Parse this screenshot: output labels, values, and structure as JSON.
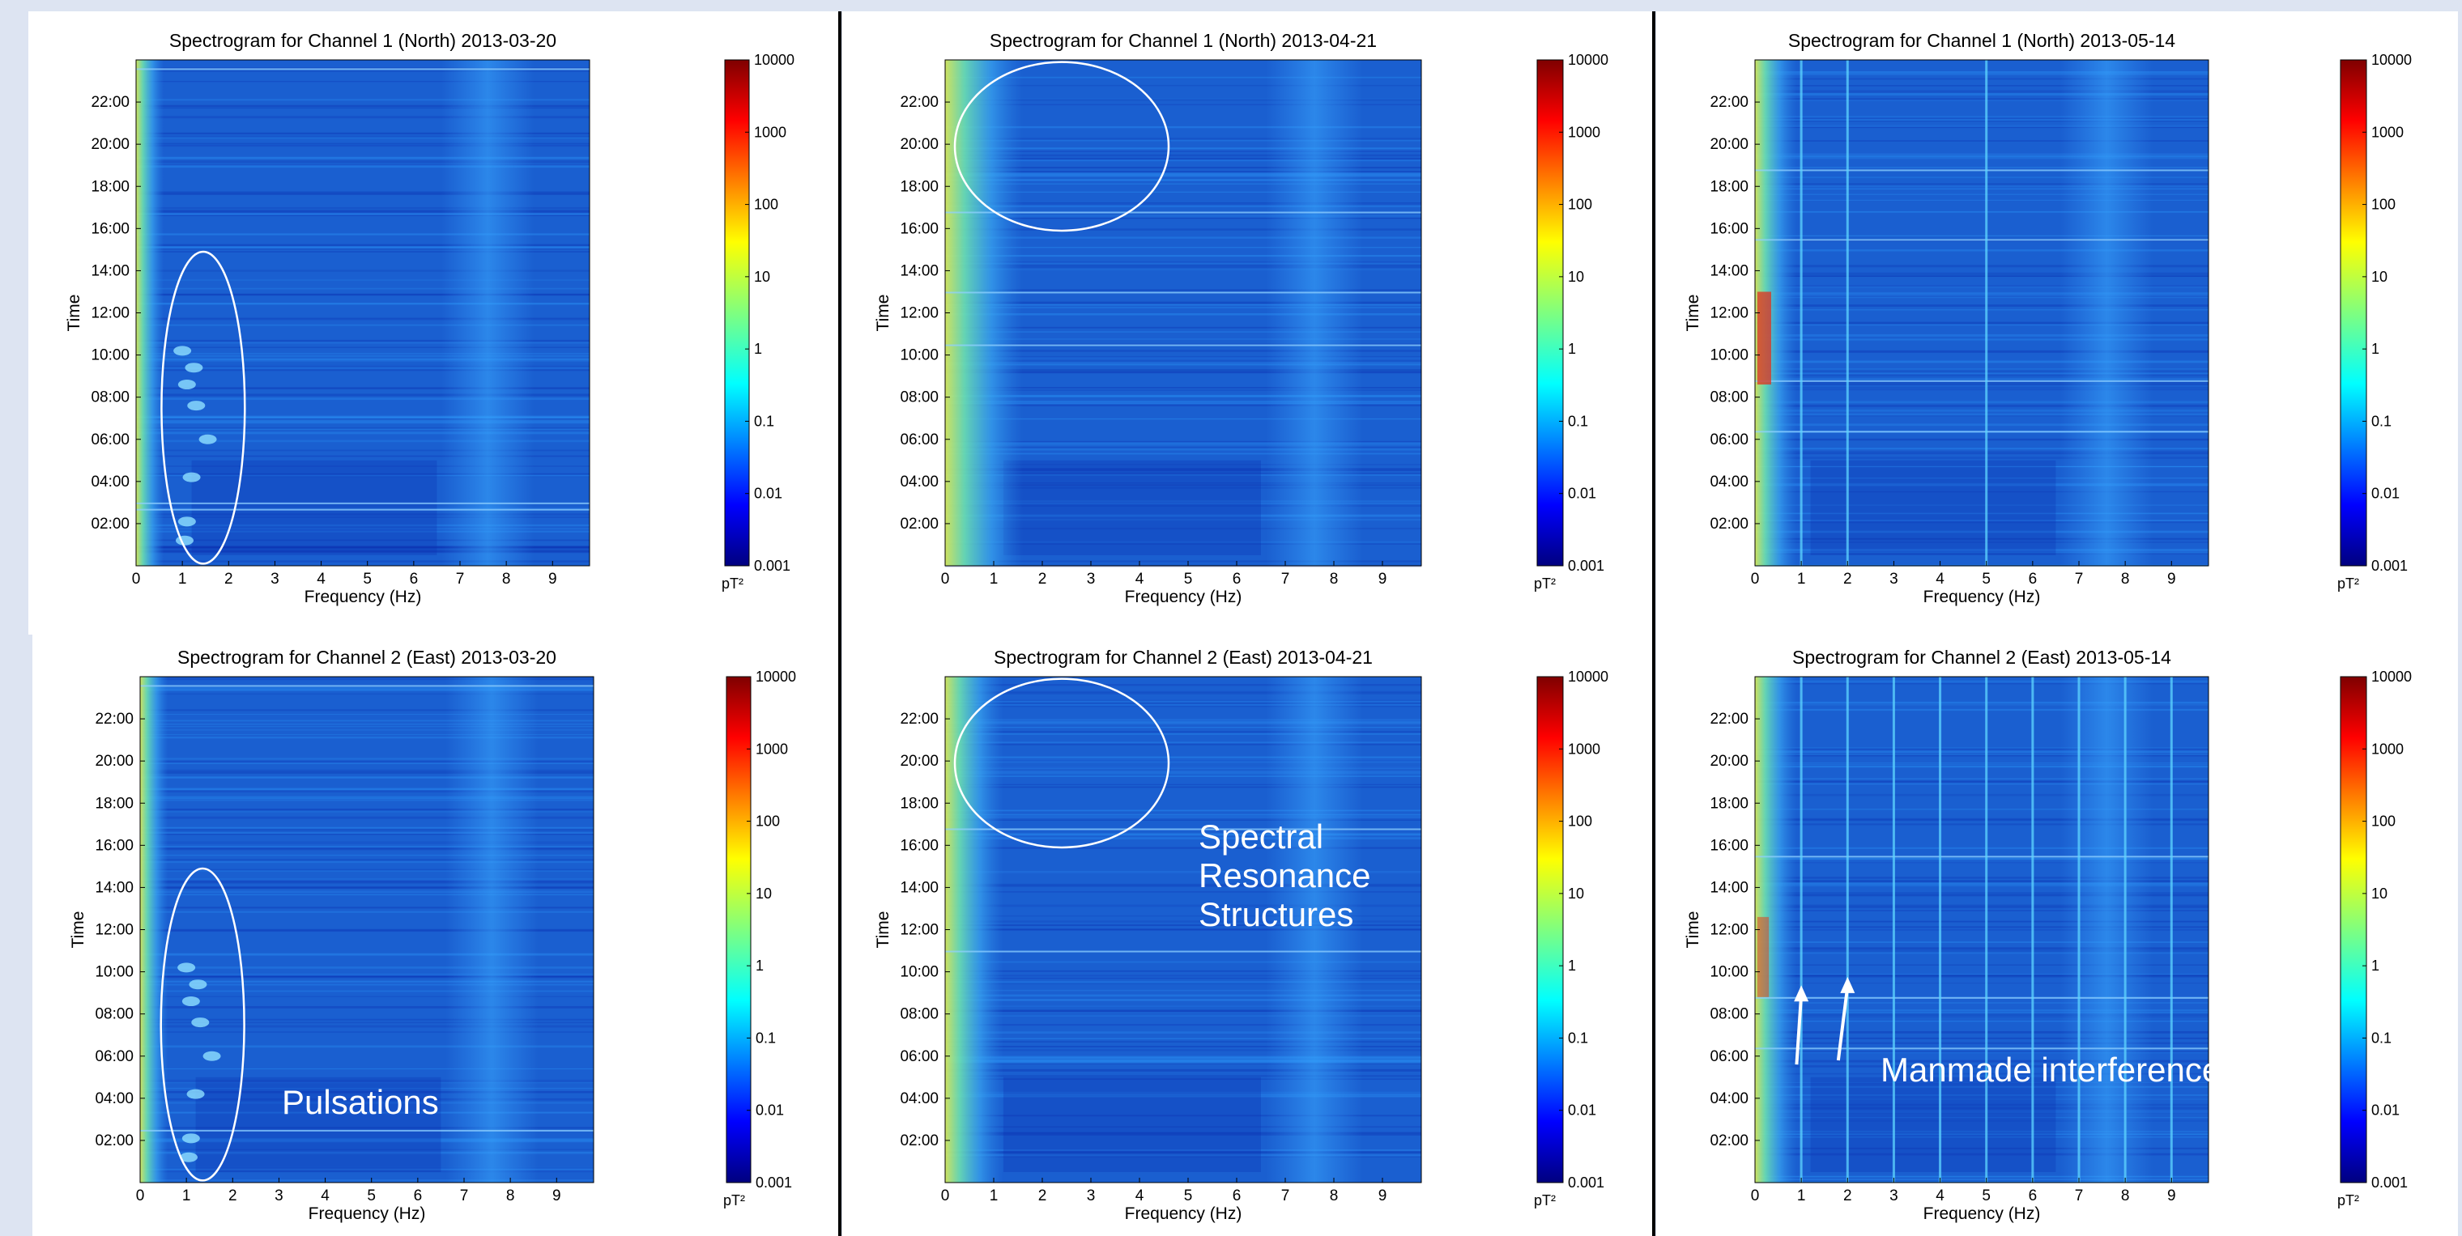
{
  "chart_data": [
    {
      "type": "heatmap",
      "title": "Spectrogram for Channel 1 (North) 2013-03-20",
      "xlabel": "Frequency (Hz)",
      "ylabel": "Time",
      "xlim": [
        0,
        9.8
      ],
      "ylim_hours": [
        0,
        24
      ],
      "x_ticks": [
        "0",
        "1",
        "2",
        "3",
        "4",
        "5",
        "6",
        "7",
        "8",
        "9"
      ],
      "y_ticks": [
        "02:00",
        "04:00",
        "06:00",
        "08:00",
        "10:00",
        "12:00",
        "14:00",
        "16:00",
        "18:00",
        "20:00",
        "22:00"
      ],
      "colorbar": {
        "unit": "pT²",
        "ticks": [
          "0.001",
          "0.01",
          "0.1",
          "1",
          "10",
          "100",
          "1000",
          "10000"
        ]
      },
      "features": {
        "low_freq_band_hz": [
          0,
          0.6
        ],
        "lines_hz": [],
        "bright_horizontal_hours": [
          23.6,
          3.0,
          2.7
        ]
      },
      "ellipse": {
        "center_hz": 1.45,
        "center_hour": 7.5,
        "rx_hz": 0.9,
        "ry_hours": 7.4
      }
    },
    {
      "type": "heatmap",
      "title": "Spectrogram for Channel 1 (North) 2013-04-21",
      "xlabel": "Frequency (Hz)",
      "ylabel": "Time",
      "xlim": [
        0,
        9.8
      ],
      "ylim_hours": [
        0,
        24
      ],
      "x_ticks": [
        "0",
        "1",
        "2",
        "3",
        "4",
        "5",
        "6",
        "7",
        "8",
        "9"
      ],
      "y_ticks": [
        "02:00",
        "04:00",
        "06:00",
        "08:00",
        "10:00",
        "12:00",
        "14:00",
        "16:00",
        "18:00",
        "20:00",
        "22:00"
      ],
      "colorbar": {
        "unit": "pT²",
        "ticks": [
          "0.001",
          "0.01",
          "0.1",
          "1",
          "10",
          "100",
          "1000",
          "10000"
        ]
      },
      "features": {
        "low_freq_band_hz": [
          0,
          1.6
        ],
        "lines_hz": [],
        "bright_horizontal_hours": [
          16.8,
          13.0,
          10.5
        ]
      },
      "ellipse": {
        "center_hz": 2.4,
        "center_hour": 19.9,
        "rx_hz": 2.2,
        "ry_hours": 4.0
      }
    },
    {
      "type": "heatmap",
      "title": "Spectrogram for Channel 1 (North) 2013-05-14",
      "xlabel": "Frequency (Hz)",
      "ylabel": "Time",
      "xlim": [
        0,
        9.8
      ],
      "ylim_hours": [
        0,
        24
      ],
      "x_ticks": [
        "0",
        "1",
        "2",
        "3",
        "4",
        "5",
        "6",
        "7",
        "8",
        "9"
      ],
      "y_ticks": [
        "02:00",
        "04:00",
        "06:00",
        "08:00",
        "10:00",
        "12:00",
        "14:00",
        "16:00",
        "18:00",
        "20:00",
        "22:00"
      ],
      "colorbar": {
        "unit": "pT²",
        "ticks": [
          "0.001",
          "0.01",
          "0.1",
          "1",
          "10",
          "100",
          "1000",
          "10000"
        ]
      },
      "features": {
        "low_freq_band_hz": [
          0,
          0.9
        ],
        "lines_hz": [
          1,
          2,
          5
        ],
        "bright_horizontal_hours": [
          18.8,
          15.5,
          8.8,
          6.4
        ]
      },
      "ellipse": null
    },
    {
      "type": "heatmap",
      "title": "Spectrogram for Channel 2 (East) 2013-03-20",
      "xlabel": "Frequency (Hz)",
      "ylabel": "Time",
      "xlim": [
        0,
        9.8
      ],
      "ylim_hours": [
        0,
        24
      ],
      "x_ticks": [
        "0",
        "1",
        "2",
        "3",
        "4",
        "5",
        "6",
        "7",
        "8",
        "9"
      ],
      "y_ticks": [
        "02:00",
        "04:00",
        "06:00",
        "08:00",
        "10:00",
        "12:00",
        "14:00",
        "16:00",
        "18:00",
        "20:00",
        "22:00"
      ],
      "colorbar": {
        "unit": "pT²",
        "ticks": [
          "0.001",
          "0.01",
          "0.1",
          "1",
          "10",
          "100",
          "1000",
          "10000"
        ]
      },
      "features": {
        "low_freq_band_hz": [
          0,
          0.6
        ],
        "lines_hz": [],
        "bright_horizontal_hours": [
          23.6,
          2.5
        ]
      },
      "ellipse": {
        "center_hz": 1.35,
        "center_hour": 7.5,
        "rx_hz": 0.9,
        "ry_hours": 7.4
      }
    },
    {
      "type": "heatmap",
      "title": "Spectrogram for Channel 2 (East) 2013-04-21",
      "xlabel": "Frequency (Hz)",
      "ylabel": "Time",
      "xlim": [
        0,
        9.8
      ],
      "ylim_hours": [
        0,
        24
      ],
      "x_ticks": [
        "0",
        "1",
        "2",
        "3",
        "4",
        "5",
        "6",
        "7",
        "8",
        "9"
      ],
      "y_ticks": [
        "02:00",
        "04:00",
        "06:00",
        "08:00",
        "10:00",
        "12:00",
        "14:00",
        "16:00",
        "18:00",
        "20:00",
        "22:00"
      ],
      "colorbar": {
        "unit": "pT²",
        "ticks": [
          "0.001",
          "0.01",
          "0.1",
          "1",
          "10",
          "100",
          "1000",
          "10000"
        ]
      },
      "features": {
        "low_freq_band_hz": [
          0,
          1.2
        ],
        "lines_hz": [],
        "bright_horizontal_hours": [
          16.8,
          11.0
        ]
      },
      "ellipse": {
        "center_hz": 2.4,
        "center_hour": 19.9,
        "rx_hz": 2.2,
        "ry_hours": 4.0
      }
    },
    {
      "type": "heatmap",
      "title": "Spectrogram for Channel 2 (East) 2013-05-14",
      "xlabel": "Frequency (Hz)",
      "ylabel": "Time",
      "xlim": [
        0,
        9.8
      ],
      "ylim_hours": [
        0,
        24
      ],
      "x_ticks": [
        "0",
        "1",
        "2",
        "3",
        "4",
        "5",
        "6",
        "7",
        "8",
        "9"
      ],
      "y_ticks": [
        "02:00",
        "04:00",
        "06:00",
        "08:00",
        "10:00",
        "12:00",
        "14:00",
        "16:00",
        "18:00",
        "20:00",
        "22:00"
      ],
      "colorbar": {
        "unit": "pT²",
        "ticks": [
          "0.001",
          "0.01",
          "0.1",
          "1",
          "10",
          "100",
          "1000",
          "10000"
        ]
      },
      "features": {
        "low_freq_band_hz": [
          0,
          0.9
        ],
        "lines_hz": [
          1,
          2,
          3,
          4,
          5,
          6,
          7,
          8,
          9
        ],
        "bright_horizontal_hours": [
          15.5,
          8.8,
          6.4
        ]
      },
      "ellipse": null
    }
  ],
  "annotations": {
    "pulsations": "Pulsations",
    "spectral": "Spectral\nResonance\nStructures",
    "manmade": "Manmade interference"
  },
  "colors": {
    "background": "#dde4f2",
    "panel": "#ffffff",
    "plot_base": "#1a5fd0",
    "plot_dark": "#0b2fb0",
    "plot_bright": "#2fa0ff",
    "annotation": "#ffffff",
    "divider": "#000000"
  }
}
